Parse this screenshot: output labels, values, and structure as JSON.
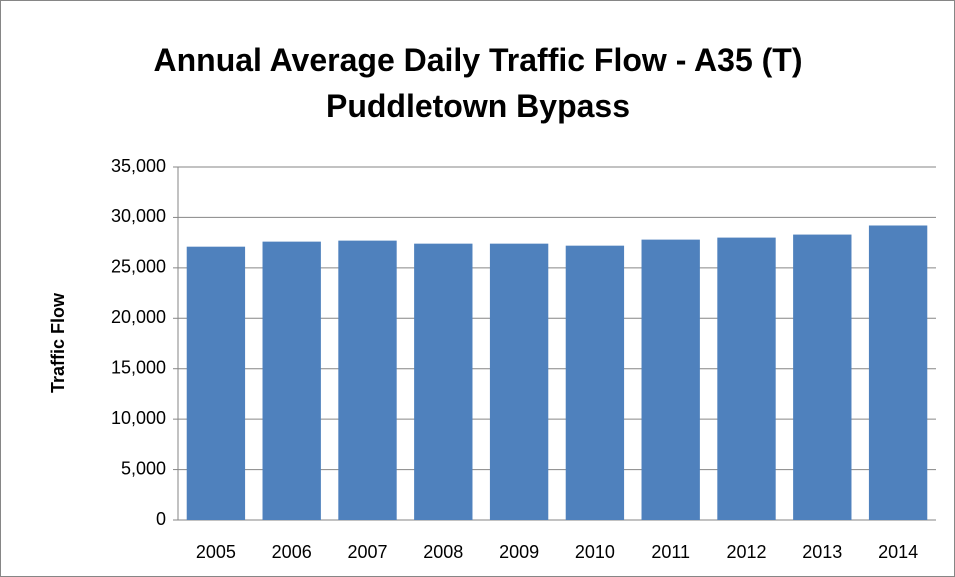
{
  "chart_data": {
    "type": "bar",
    "title": "Annual Average Daily Traffic Flow - A35 (T) Puddletown Bypass",
    "y_label": "Traffic Flow",
    "categories": [
      "2005",
      "2006",
      "2007",
      "2008",
      "2009",
      "2010",
      "2011",
      "2012",
      "2013",
      "2014"
    ],
    "values": [
      27100,
      27600,
      27700,
      27400,
      27400,
      27200,
      27800,
      28000,
      28300,
      29200
    ],
    "color": "#4f81bd",
    "ylim": [
      0,
      35000
    ],
    "yticks": [
      0,
      {
        "value": 5000,
        "label": "5,000"
      },
      {
        "value": 10000,
        "label": "10,000"
      },
      {
        "value": 15000,
        "label": "15,000"
      },
      {
        "value": 20000,
        "label": "20,000"
      },
      {
        "value": 25000,
        "label": "25,000"
      },
      {
        "value": 30000,
        "label": "30,000"
      },
      {
        "value": 35000,
        "label": "35,000"
      }
    ],
    "grid": true
  }
}
